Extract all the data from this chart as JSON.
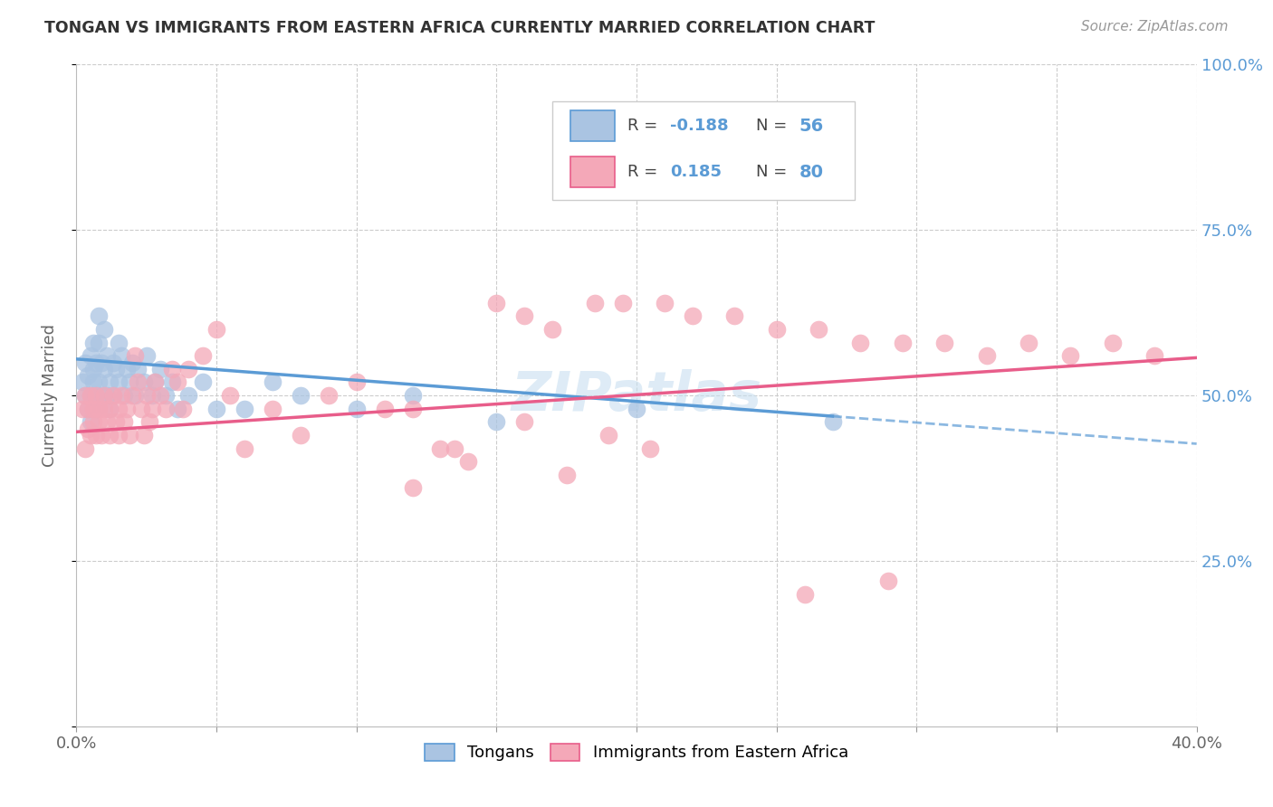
{
  "title": "TONGAN VS IMMIGRANTS FROM EASTERN AFRICA CURRENTLY MARRIED CORRELATION CHART",
  "source": "Source: ZipAtlas.com",
  "ylabel": "Currently Married",
  "xlim": [
    0.0,
    0.4
  ],
  "ylim": [
    0.0,
    1.0
  ],
  "color_tongan": "#aac4e2",
  "color_eastern_africa": "#f4a8b8",
  "color_tongan_line": "#5b9bd5",
  "color_eastern_africa_line": "#e85d8a",
  "watermark": "ZIPatlas",
  "legend_r1_text": "R = ",
  "legend_r1_val": "-0.188",
  "legend_n1_text": "N = ",
  "legend_n1_val": "56",
  "legend_r2_text": "R =  ",
  "legend_r2_val": "0.185",
  "legend_n2_text": "N = ",
  "legend_n2_val": "80",
  "tongan_scatter_x": [
    0.002,
    0.003,
    0.003,
    0.004,
    0.004,
    0.005,
    0.005,
    0.005,
    0.006,
    0.006,
    0.006,
    0.007,
    0.007,
    0.007,
    0.008,
    0.008,
    0.008,
    0.009,
    0.009,
    0.01,
    0.01,
    0.011,
    0.011,
    0.012,
    0.012,
    0.013,
    0.013,
    0.014,
    0.015,
    0.015,
    0.016,
    0.017,
    0.018,
    0.019,
    0.02,
    0.021,
    0.022,
    0.024,
    0.025,
    0.027,
    0.028,
    0.03,
    0.032,
    0.034,
    0.036,
    0.04,
    0.045,
    0.05,
    0.06,
    0.07,
    0.08,
    0.1,
    0.12,
    0.15,
    0.2,
    0.27
  ],
  "tongan_scatter_y": [
    0.52,
    0.5,
    0.55,
    0.48,
    0.53,
    0.56,
    0.5,
    0.46,
    0.52,
    0.58,
    0.54,
    0.5,
    0.55,
    0.48,
    0.62,
    0.58,
    0.52,
    0.5,
    0.55,
    0.6,
    0.54,
    0.5,
    0.56,
    0.48,
    0.52,
    0.55,
    0.5,
    0.54,
    0.58,
    0.52,
    0.56,
    0.5,
    0.54,
    0.52,
    0.55,
    0.5,
    0.54,
    0.52,
    0.56,
    0.5,
    0.52,
    0.54,
    0.5,
    0.52,
    0.48,
    0.5,
    0.52,
    0.48,
    0.48,
    0.52,
    0.5,
    0.48,
    0.5,
    0.46,
    0.48,
    0.46
  ],
  "eastern_scatter_x": [
    0.002,
    0.003,
    0.003,
    0.004,
    0.004,
    0.005,
    0.005,
    0.006,
    0.006,
    0.007,
    0.007,
    0.008,
    0.008,
    0.009,
    0.01,
    0.01,
    0.011,
    0.012,
    0.012,
    0.013,
    0.014,
    0.015,
    0.015,
    0.016,
    0.017,
    0.018,
    0.019,
    0.02,
    0.021,
    0.022,
    0.023,
    0.024,
    0.025,
    0.026,
    0.027,
    0.028,
    0.03,
    0.032,
    0.034,
    0.036,
    0.038,
    0.04,
    0.045,
    0.05,
    0.055,
    0.06,
    0.07,
    0.08,
    0.09,
    0.1,
    0.11,
    0.12,
    0.13,
    0.14,
    0.15,
    0.16,
    0.17,
    0.185,
    0.195,
    0.21,
    0.22,
    0.235,
    0.25,
    0.265,
    0.28,
    0.295,
    0.31,
    0.325,
    0.34,
    0.355,
    0.37,
    0.385,
    0.12,
    0.135,
    0.16,
    0.175,
    0.19,
    0.205,
    0.26,
    0.29
  ],
  "eastern_scatter_y": [
    0.48,
    0.42,
    0.5,
    0.45,
    0.48,
    0.44,
    0.5,
    0.46,
    0.48,
    0.44,
    0.5,
    0.46,
    0.48,
    0.44,
    0.48,
    0.5,
    0.46,
    0.48,
    0.44,
    0.5,
    0.46,
    0.48,
    0.44,
    0.5,
    0.46,
    0.48,
    0.44,
    0.5,
    0.56,
    0.52,
    0.48,
    0.44,
    0.5,
    0.46,
    0.48,
    0.52,
    0.5,
    0.48,
    0.54,
    0.52,
    0.48,
    0.54,
    0.56,
    0.6,
    0.5,
    0.42,
    0.48,
    0.44,
    0.5,
    0.52,
    0.48,
    0.36,
    0.42,
    0.4,
    0.64,
    0.62,
    0.6,
    0.64,
    0.64,
    0.64,
    0.62,
    0.62,
    0.6,
    0.6,
    0.58,
    0.58,
    0.58,
    0.56,
    0.58,
    0.56,
    0.58,
    0.56,
    0.48,
    0.42,
    0.46,
    0.38,
    0.44,
    0.42,
    0.2,
    0.22
  ]
}
